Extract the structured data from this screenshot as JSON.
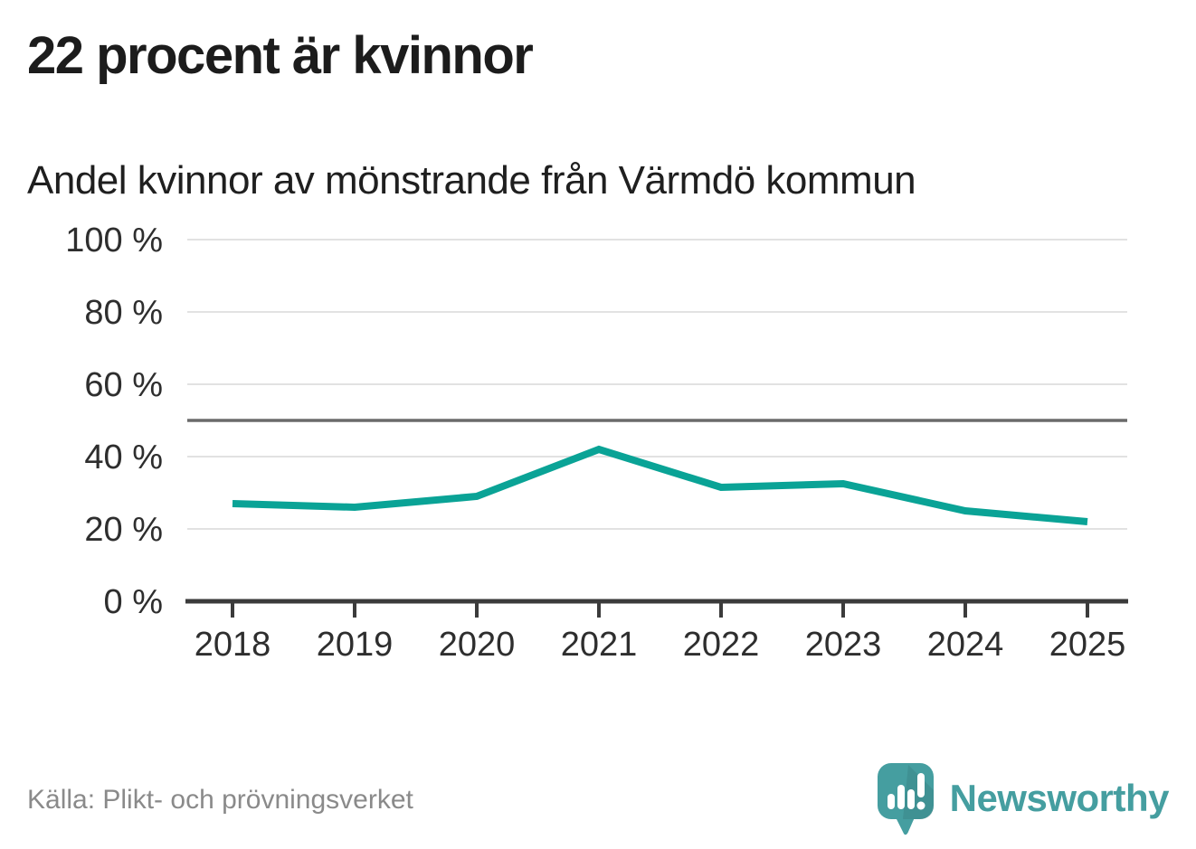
{
  "header": {
    "title": "22 procent är kvinnor",
    "subtitle": "Andel kvinnor av mönstrande från Värmdö kommun"
  },
  "chart_data": {
    "type": "line",
    "title": "22 procent är kvinnor",
    "subtitle": "Andel kvinnor av mönstrande från Värmdö kommun",
    "x": [
      "2018",
      "2019",
      "2020",
      "2021",
      "2022",
      "2023",
      "2024",
      "2025"
    ],
    "series": [
      {
        "name": "Andel kvinnor av mönstrande",
        "values": [
          27,
          26,
          29,
          42,
          31.5,
          32.5,
          25,
          22
        ]
      }
    ],
    "ylim": [
      0,
      100
    ],
    "yticks": [
      0,
      20,
      40,
      60,
      80,
      100
    ],
    "ytick_suffix": " %",
    "reference_line": 50,
    "grid": true,
    "legend": "none",
    "colors": {
      "line": "#0aa396",
      "reference_line": "#6b6b6b",
      "axis": "#3b3b3b",
      "gridline": "#e2e2e2",
      "tick_label": "#2e2e2e"
    }
  },
  "footer": {
    "source": "Källa: Plikt- och prövningsverket",
    "brand": "Newsworthy",
    "brand_color": "#459ea0"
  }
}
